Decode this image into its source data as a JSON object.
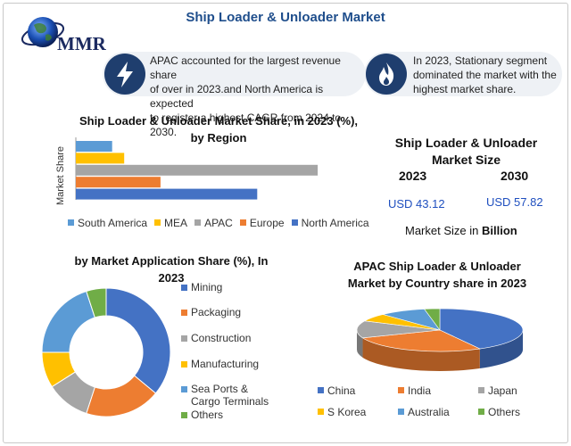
{
  "title": "Ship Loader & Unloader Market",
  "logo": {
    "text": "MMR"
  },
  "callouts": [
    {
      "icon": "lightning-icon",
      "text_lines": [
        "APAC accounted for the largest revenue share",
        "of over in 2023.and North America is expected",
        "to register a highest CAGR from 2024 to 2030."
      ]
    },
    {
      "icon": "flame-icon",
      "text_lines": [
        "In 2023, Stationary segment",
        "dominated the market with the",
        "highest market share."
      ]
    }
  ],
  "market_size": {
    "title_lines": [
      "Ship Loader & Unloader",
      "Market Size"
    ],
    "year_a": "2023",
    "year_b": "2030",
    "value_a": "USD 43.12",
    "value_b": "USD 57.82",
    "note_prefix": "Market Size in ",
    "note_bold": "Billion"
  },
  "colors": {
    "accent": "#1f4e8c",
    "value_text": "#1f4fbf",
    "south_america": "#5b9bd5",
    "mea": "#ffc000",
    "apac": "#a5a5a5",
    "europe": "#ed7d31",
    "north_america": "#4472c4",
    "mining": "#4472c4",
    "packaging": "#ed7d31",
    "construction": "#a5a5a5",
    "manufacturing": "#ffc000",
    "sea_ports": "#5b9bd5",
    "others": "#70ad47"
  },
  "chart_data": [
    {
      "type": "bar",
      "orientation": "horizontal",
      "title": "Ship Loader & Unloader Market Share, in 2023 (%), by Region",
      "title_lines": [
        "Ship Loader & Unloader Market Share, in 2023 (%),",
        "by Region"
      ],
      "ylabel": "Market Share",
      "categories": [
        "South America",
        "MEA",
        "APAC",
        "Europe",
        "North America"
      ],
      "values": [
        6,
        8,
        40,
        14,
        30
      ],
      "xlim": [
        0,
        45
      ],
      "grid": false,
      "legend": "bottom"
    },
    {
      "type": "pie",
      "variant": "donut",
      "title": "by Market Application Share (%), In 2023",
      "title_lines": [
        "by Market Application Share (%), In",
        "2023"
      ],
      "categories": [
        "Mining",
        "Packaging",
        "Construction",
        "Manufacturing",
        "Sea Ports & Cargo Terminals",
        "Others"
      ],
      "legend_lines": [
        [
          "Mining"
        ],
        [
          "Packaging"
        ],
        [
          "Construction"
        ],
        [
          "Manufacturing"
        ],
        [
          "Sea Ports &",
          "Cargo Terminals"
        ],
        [
          "Others"
        ]
      ],
      "values": [
        36,
        19,
        11,
        9,
        20,
        5
      ],
      "legend": "right"
    },
    {
      "type": "pie",
      "variant": "3d",
      "title": "APAC Ship Loader & Unloader Market by Country share in 2023",
      "title_lines": [
        "APAC Ship Loader & Unloader",
        "Market by Country share in 2023"
      ],
      "categories": [
        "China",
        "India",
        "Japan",
        "S Korea",
        "Australia",
        "Others"
      ],
      "values": [
        42,
        27,
        13,
        6,
        9,
        3
      ],
      "legend": "bottom"
    }
  ]
}
